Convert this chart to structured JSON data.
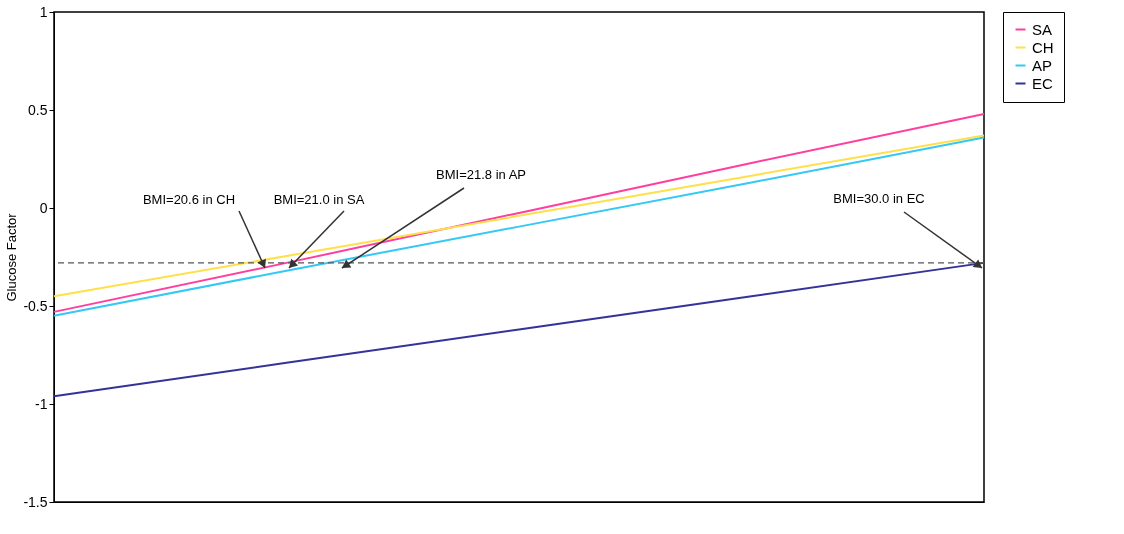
{
  "chart_data": {
    "type": "line",
    "ylabel": "Glucose Factor",
    "categories": [
      null,
      null,
      null,
      null,
      null
    ],
    "series": [
      {
        "name": "SA",
        "color": "#ff3fa0",
        "values": [
          -0.53,
          -0.28,
          -0.025,
          0.23,
          0.48
        ]
      },
      {
        "name": "CH",
        "color": "#ffe04a",
        "values": [
          -0.45,
          -0.245,
          -0.04,
          0.165,
          0.37
        ]
      },
      {
        "name": "AP",
        "color": "#33c8f5",
        "values": [
          -0.55,
          -0.32,
          -0.095,
          0.13,
          0.36
        ]
      },
      {
        "name": "EC",
        "color": "#33339a",
        "values": [
          -0.96,
          -0.79,
          -0.62,
          -0.45,
          -0.28
        ]
      }
    ],
    "ylim": [
      -1.5,
      1
    ],
    "yticks": [
      -1.5,
      -1,
      -0.5,
      0,
      0.5,
      1
    ],
    "ref_lines": [
      {
        "axis": "y",
        "value": -0.28,
        "color": "#555555",
        "line_style": "dashed"
      }
    ],
    "annotations": [
      "BMI=20.6 in CH",
      "BMI=21.0 in SA",
      "BMI=21.8 in AP",
      "BMI=30.0 in EC"
    ],
    "legend": "right",
    "grid": false,
    "line_style": "solid",
    "marker": "none"
  }
}
